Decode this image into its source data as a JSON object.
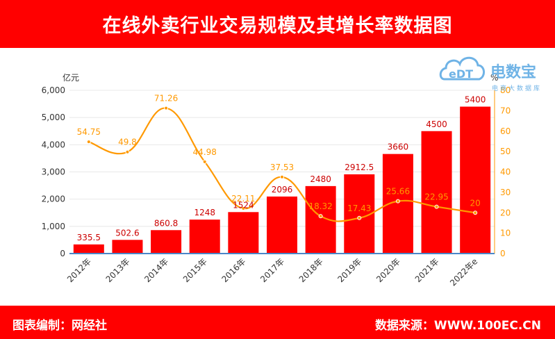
{
  "title": "在线外卖行业交易规模及其增长率数据图",
  "footer": {
    "left": "图表编制：网经社",
    "right": "数据来源：WWW.100EC.CN"
  },
  "logo": {
    "mark": "eDT",
    "name": "电数宝",
    "sub": "电商大数据库"
  },
  "colors": {
    "bar": "#ff0000",
    "line": "#ff9900",
    "banner": "#ff0000"
  },
  "chart_data": {
    "type": "bar",
    "categories": [
      "2012年",
      "2013年",
      "2014年",
      "2015年",
      "2016年",
      "2017年",
      "2018年",
      "2019年",
      "2020年",
      "2021年",
      "2022年e"
    ],
    "series": [
      {
        "type": "bar",
        "values": [
          335.5,
          502.6,
          860.8,
          1248,
          1524,
          2096,
          2480,
          2912.5,
          3660,
          4500,
          5400
        ],
        "labels": [
          "335.5",
          "502.6",
          "860.8",
          "1248",
          "1524",
          "2096",
          "2480",
          "2912.5",
          "3660",
          "4500",
          "5400"
        ],
        "axis": "left"
      },
      {
        "type": "line",
        "values": [
          54.75,
          49.8,
          71.26,
          44.98,
          22.11,
          37.53,
          18.32,
          17.43,
          25.66,
          22.95,
          20
        ],
        "labels": [
          "54.75",
          "49.8",
          "71.26",
          "44.98",
          "22.11",
          "37.53",
          "18.32",
          "17.43",
          "25.66",
          "22.95",
          "20"
        ],
        "axis": "right"
      }
    ],
    "ylabel": "亿元",
    "ylabel_right": "%",
    "ylim": [
      0,
      6000
    ],
    "ylim_right": [
      0,
      80
    ],
    "yticks": [
      "0",
      "1,000",
      "2,000",
      "3,000",
      "4,000",
      "5,000",
      "6,000"
    ],
    "yticks_right": [
      "0",
      "10",
      "20",
      "30",
      "40",
      "50",
      "60",
      "70",
      "80"
    ],
    "grid": true
  }
}
